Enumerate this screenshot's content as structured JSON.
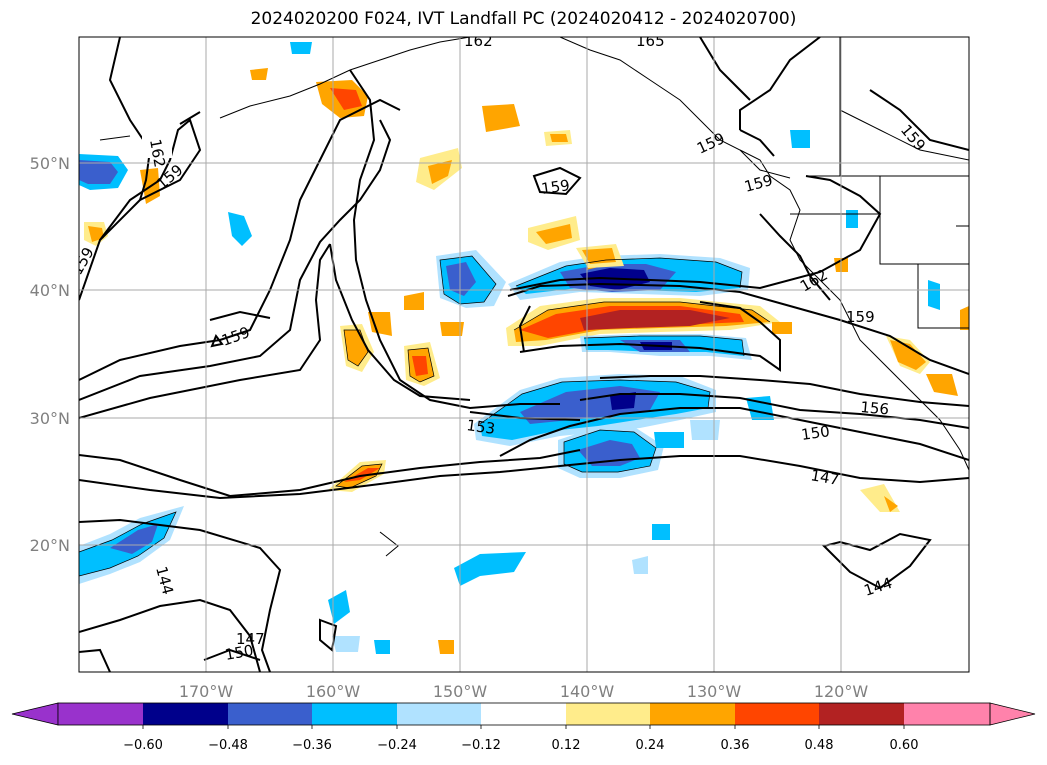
{
  "title": "2024020200 F024, IVT Landfall PC (2024020412 - 2024020700)",
  "map": {
    "lon_ticks": [
      "170°W",
      "160°W",
      "150°W",
      "140°W",
      "130°W",
      "120°W"
    ],
    "lat_ticks": [
      "50°N",
      "40°N",
      "30°N",
      "20°N"
    ],
    "contour_labels": [
      {
        "text": "162",
        "name": "contour-label-162-west"
      },
      {
        "text": "159",
        "name": "contour-label-159-nw"
      },
      {
        "text": "159",
        "name": "contour-label-159-west"
      },
      {
        "text": "159",
        "name": "contour-label-159-central-west"
      },
      {
        "text": "159",
        "name": "contour-label-159-central"
      },
      {
        "text": "159",
        "name": "contour-label-159-alaska"
      },
      {
        "text": "159",
        "name": "contour-label-159-bc"
      },
      {
        "text": "159",
        "name": "contour-label-159-canada"
      },
      {
        "text": "162",
        "name": "contour-label-162-east"
      },
      {
        "text": "159",
        "name": "contour-label-159-california"
      },
      {
        "text": "156",
        "name": "contour-label-156"
      },
      {
        "text": "153",
        "name": "contour-label-153"
      },
      {
        "text": "150",
        "name": "contour-label-150-east"
      },
      {
        "text": "147",
        "name": "contour-label-147-east"
      },
      {
        "text": "144",
        "name": "contour-label-144-east"
      },
      {
        "text": "144",
        "name": "contour-label-144-west"
      },
      {
        "text": "147",
        "name": "contour-label-147-sw"
      },
      {
        "text": "150",
        "name": "contour-label-150-sw"
      },
      {
        "text": "162",
        "name": "contour-label-162-top"
      },
      {
        "text": "165",
        "name": "contour-label-165-top"
      }
    ]
  },
  "colorbar": {
    "ticks": [
      "−0.60",
      "−0.48",
      "−0.36",
      "−0.24",
      "−0.12",
      "0.12",
      "0.24",
      "0.36",
      "0.48",
      "0.60"
    ],
    "colors": [
      "#9932cc",
      "#00008b",
      "#3a5fcd",
      "#00bfff",
      "#b0e2ff",
      "#ffffff",
      "#ffec8b",
      "#ffa500",
      "#ff4500",
      "#b22222",
      "#ff82ab"
    ]
  }
}
